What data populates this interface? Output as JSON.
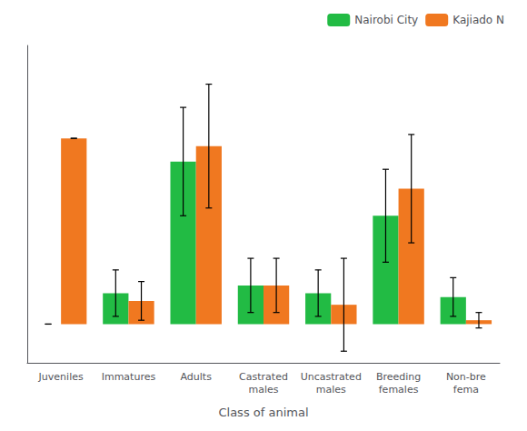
{
  "chart_data": {
    "type": "bar",
    "xlabel": "Class of animal",
    "categories": [
      "Juveniles",
      "Immatures",
      "Adults",
      "Castrated\nmales",
      "Uncastrated\nmales",
      "Breeding\nfemales",
      "Non-bre\nfema"
    ],
    "series": [
      {
        "name": "Nairobi City",
        "color": "#22bb44",
        "values": [
          0,
          8,
          42,
          10,
          8,
          28,
          7
        ],
        "errors": [
          0,
          6,
          14,
          7,
          6,
          12,
          5
        ]
      },
      {
        "name": "Kajiado N",
        "color": "#f07820",
        "values": [
          48,
          6,
          46,
          10,
          5,
          35,
          1
        ],
        "errors": [
          0,
          5,
          16,
          7,
          12,
          14,
          2
        ]
      }
    ],
    "ylim": [
      -10,
      72
    ],
    "grid": false,
    "legend": "upper right",
    "tick_labels": "x"
  }
}
